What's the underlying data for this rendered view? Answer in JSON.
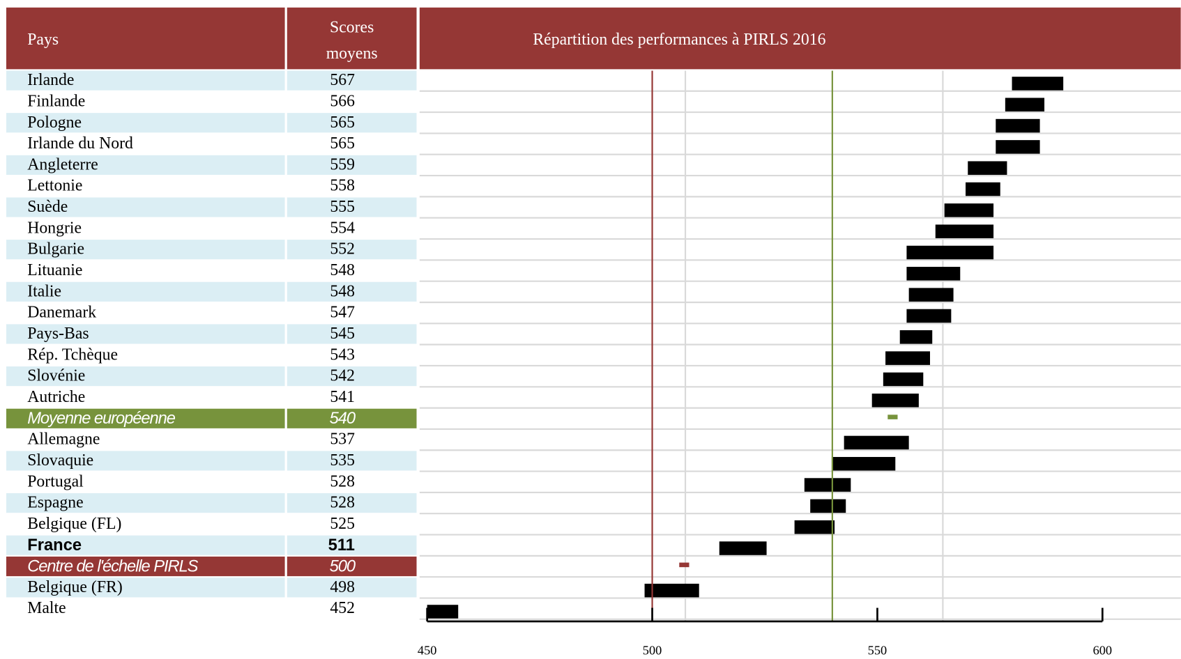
{
  "chart_data": {
    "type": "range_bar",
    "title": "Répartition des performances à PIRLS 2016",
    "header": {
      "country": "Pays",
      "score": "Scores moyens"
    },
    "bar_color": "#000000",
    "rows": [
      {
        "country": "Irlande",
        "score": 567,
        "low": 579.9,
        "high": 591.3
      },
      {
        "country": "Finlande",
        "score": 566,
        "low": 578.4,
        "high": 587.1
      },
      {
        "country": "Pologne",
        "score": 565,
        "low": 576.3,
        "high": 586.1
      },
      {
        "country": "Irlande du Nord",
        "score": 565,
        "low": 576.3,
        "high": 586.1
      },
      {
        "country": "Angleterre",
        "score": 559,
        "low": 570.1,
        "high": 578.8
      },
      {
        "country": "Lettonie",
        "score": 558,
        "low": 569.6,
        "high": 577.3
      },
      {
        "country": "Suède",
        "score": 555,
        "low": 564.9,
        "high": 575.8
      },
      {
        "country": "Hongrie",
        "score": 554,
        "low": 562.9,
        "high": 575.8
      },
      {
        "country": "Bulgarie",
        "score": 552,
        "low": 556.5,
        "high": 575.8
      },
      {
        "country": "Lituanie",
        "score": 548,
        "low": 556.5,
        "high": 568.4
      },
      {
        "country": "Italie",
        "score": 548,
        "low": 557.0,
        "high": 566.9
      },
      {
        "country": "Danemark",
        "score": 547,
        "low": 556.5,
        "high": 566.4
      },
      {
        "country": "Pays-Bas",
        "score": 545,
        "low": 555.0,
        "high": 562.2
      },
      {
        "country": "Rép. Tchèque",
        "score": 543,
        "low": 551.8,
        "high": 561.7
      },
      {
        "country": "Slovénie",
        "score": 542,
        "low": 551.3,
        "high": 560.2
      },
      {
        "country": "Autriche",
        "score": 541,
        "low": 548.8,
        "high": 559.2
      },
      {
        "country": "Moyenne européenne",
        "score": 540,
        "low": 552.3,
        "high": 554.5,
        "color": "#77933c"
      },
      {
        "country": "Allemagne",
        "score": 537,
        "low": 542.6,
        "high": 557.0
      },
      {
        "country": "Slovaquie",
        "score": 535,
        "low": 540.0,
        "high": 554.0
      },
      {
        "country": "Portugal",
        "score": 528,
        "low": 533.8,
        "high": 544.1
      },
      {
        "country": "Espagne",
        "score": 528,
        "low": 535.1,
        "high": 543.0
      },
      {
        "country": "Belgique (FL)",
        "score": 525,
        "low": 531.6,
        "high": 540.5
      },
      {
        "country": "France",
        "score": 511,
        "low": 514.9,
        "high": 525.4,
        "bold": true
      },
      {
        "country": "Centre de l'échelle PIRLS",
        "score": 500,
        "low": 506.0,
        "high": 508.2,
        "color": "#953735"
      },
      {
        "country": "Belgique (FR)",
        "score": 498,
        "low": 498.3,
        "high": 510.4
      },
      {
        "country": "Malte",
        "score": 452,
        "low": 450.0,
        "high": 456.9
      }
    ],
    "xlim": [
      450,
      600
    ],
    "xticks": [
      450,
      500,
      550,
      600
    ]
  }
}
